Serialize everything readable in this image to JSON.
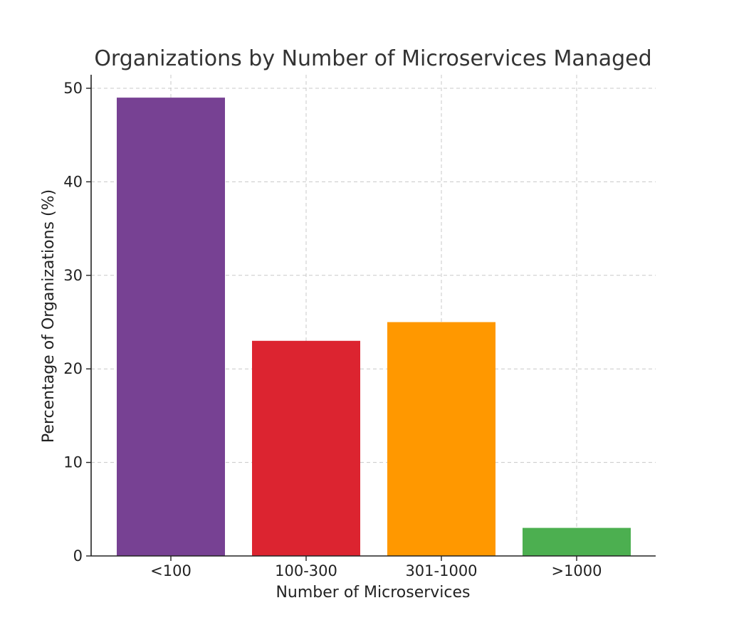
{
  "chart_data": {
    "type": "bar",
    "title": "Organizations by Number of Microservices Managed",
    "xlabel": "Number of Microservices",
    "ylabel": "Percentage of Organizations (%)",
    "categories": [
      "<100",
      "100-300",
      "301-1000",
      ">1000"
    ],
    "values": [
      49,
      23,
      25,
      3
    ],
    "colors": [
      "#774193",
      "#dc2430",
      "#ff9800",
      "#4caf50"
    ],
    "ylim": [
      0,
      50
    ],
    "yticks": [
      0,
      10,
      20,
      30,
      40,
      50
    ],
    "grid": true
  }
}
